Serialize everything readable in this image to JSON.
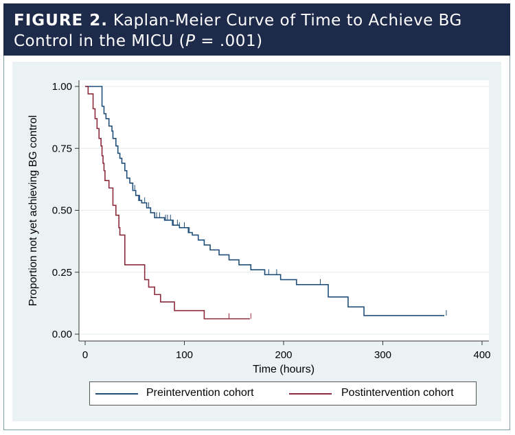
{
  "header": {
    "figure_label": "FIGURE 2.",
    "title_part1": "Kaplan-Meier Curve of Time to Achieve BG",
    "title_part2": "Control in the MICU (",
    "p_symbol": "P",
    "p_value": " = .001)"
  },
  "chart_data": {
    "type": "line",
    "title": "Kaplan-Meier Curve of Time to Achieve BG Control in the MICU (P = .001)",
    "xlabel": "Time (hours)",
    "ylabel": "Proportion not yet achieving BG control",
    "xlim": [
      0,
      400
    ],
    "ylim": [
      0,
      1
    ],
    "xticks": [
      0,
      100,
      200,
      300,
      400
    ],
    "yticks": [
      0,
      0.25,
      0.5,
      0.75,
      1
    ],
    "xtick_labels": [
      "0",
      "100",
      "200",
      "300",
      "400"
    ],
    "ytick_labels": [
      "0.00",
      "0.25",
      "0.50",
      "0.75",
      "1.00"
    ],
    "grid": true,
    "legend_position": "bottom",
    "series": [
      {
        "name": "Preintervention cohort",
        "color": "#1f4e79",
        "steps": [
          [
            0,
            1.0
          ],
          [
            17,
            1.0
          ],
          [
            17,
            0.92
          ],
          [
            19,
            0.89
          ],
          [
            21,
            0.87
          ],
          [
            24,
            0.84
          ],
          [
            27,
            0.82
          ],
          [
            28,
            0.79
          ],
          [
            31,
            0.76
          ],
          [
            33,
            0.73
          ],
          [
            35,
            0.71
          ],
          [
            37,
            0.69
          ],
          [
            40,
            0.66
          ],
          [
            42,
            0.63
          ],
          [
            45,
            0.61
          ],
          [
            48,
            0.58
          ],
          [
            51,
            0.56
          ],
          [
            54,
            0.54
          ],
          [
            57,
            0.53
          ],
          [
            62,
            0.51
          ],
          [
            66,
            0.49
          ],
          [
            70,
            0.47
          ],
          [
            80,
            0.46
          ],
          [
            88,
            0.44
          ],
          [
            95,
            0.43
          ],
          [
            104,
            0.41
          ],
          [
            108,
            0.4
          ],
          [
            114,
            0.38
          ],
          [
            120,
            0.36
          ],
          [
            126,
            0.34
          ],
          [
            135,
            0.32
          ],
          [
            145,
            0.3
          ],
          [
            155,
            0.28
          ],
          [
            167,
            0.26
          ],
          [
            181,
            0.24
          ],
          [
            197,
            0.22
          ],
          [
            213,
            0.2
          ],
          [
            245,
            0.2
          ],
          [
            245,
            0.15
          ],
          [
            265,
            0.15
          ],
          [
            265,
            0.11
          ],
          [
            281,
            0.11
          ],
          [
            281,
            0.075
          ],
          [
            362,
            0.075
          ]
        ],
        "censor_times": [
          50,
          55,
          60,
          64,
          72,
          75,
          81,
          83,
          86,
          89,
          93,
          95,
          100,
          105,
          167,
          185,
          193,
          237,
          364
        ]
      },
      {
        "name": "Postintervention cohort",
        "color": "#8b2a3a",
        "steps": [
          [
            0,
            1.0
          ],
          [
            3,
            1.0
          ],
          [
            3,
            0.97
          ],
          [
            8,
            0.97
          ],
          [
            8,
            0.91
          ],
          [
            10,
            0.87
          ],
          [
            12,
            0.83
          ],
          [
            14,
            0.79
          ],
          [
            16,
            0.76
          ],
          [
            17,
            0.72
          ],
          [
            18,
            0.69
          ],
          [
            19,
            0.66
          ],
          [
            20,
            0.62
          ],
          [
            24,
            0.62
          ],
          [
            24,
            0.59
          ],
          [
            28,
            0.59
          ],
          [
            28,
            0.52
          ],
          [
            31,
            0.48
          ],
          [
            34,
            0.43
          ],
          [
            35,
            0.4
          ],
          [
            40,
            0.4
          ],
          [
            40,
            0.28
          ],
          [
            60,
            0.28
          ],
          [
            60,
            0.22
          ],
          [
            64,
            0.19
          ],
          [
            70,
            0.16
          ],
          [
            76,
            0.13
          ],
          [
            90,
            0.13
          ],
          [
            90,
            0.095
          ],
          [
            120,
            0.095
          ],
          [
            120,
            0.062
          ],
          [
            166,
            0.062
          ]
        ],
        "censor_times": [
          145,
          167
        ]
      }
    ]
  }
}
